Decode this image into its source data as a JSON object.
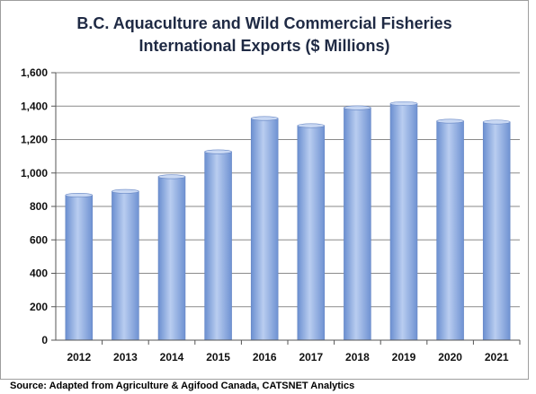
{
  "chart_data": {
    "type": "bar",
    "title_line1": "B.C. Aquaculture and Wild Commercial Fisheries",
    "title_line2": "International Exports ($ Millions)",
    "categories": [
      "2012",
      "2013",
      "2014",
      "2015",
      "2016",
      "2017",
      "2018",
      "2019",
      "2020",
      "2021"
    ],
    "values": [
      867,
      890,
      978,
      1127,
      1326,
      1283,
      1390,
      1415,
      1310,
      1305
    ],
    "ylim": [
      0,
      1600
    ],
    "yticks": [
      0,
      200,
      400,
      600,
      800,
      1000,
      1200,
      1400,
      1600
    ],
    "ytick_labels": [
      "0",
      "200",
      "400",
      "600",
      "800",
      "1,000",
      "1,200",
      "1,400",
      "1,600"
    ],
    "grid": true,
    "bar_color": "#7f9ed6",
    "bar_highlight": "#b7ccef"
  },
  "source": "Source: Adapted from Agriculture & Agifood Canada, CATSNET Analytics"
}
